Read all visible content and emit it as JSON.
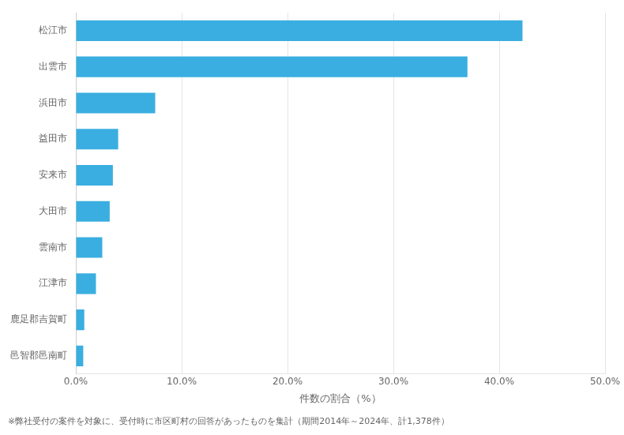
{
  "chart_data": {
    "type": "bar",
    "orientation": "horizontal",
    "categories": [
      "松江市",
      "出雲市",
      "浜田市",
      "益田市",
      "安来市",
      "大田市",
      "雲南市",
      "江津市",
      "鹿足郡吉賀町",
      "邑智郡邑南町"
    ],
    "values": [
      42.2,
      37.0,
      7.5,
      4.0,
      3.5,
      3.2,
      2.5,
      1.9,
      0.8,
      0.7
    ],
    "color": "#3aaee0",
    "xlabel": "件数の割合（%）",
    "xlim": [
      0,
      50
    ],
    "xticks": [
      {
        "value": 0,
        "label": "0.0%"
      },
      {
        "value": 10,
        "label": "10.0%"
      },
      {
        "value": 20,
        "label": "20.0%"
      },
      {
        "value": 30,
        "label": "30.0%"
      },
      {
        "value": 40,
        "label": "40.0%"
      },
      {
        "value": 50,
        "label": "50.0%"
      }
    ],
    "grid": true,
    "annotation": "※弊社受付の案件を対象に、受付時に市区町村の回答があったものを集計（期間2014年～2024年、計1,378件）"
  }
}
